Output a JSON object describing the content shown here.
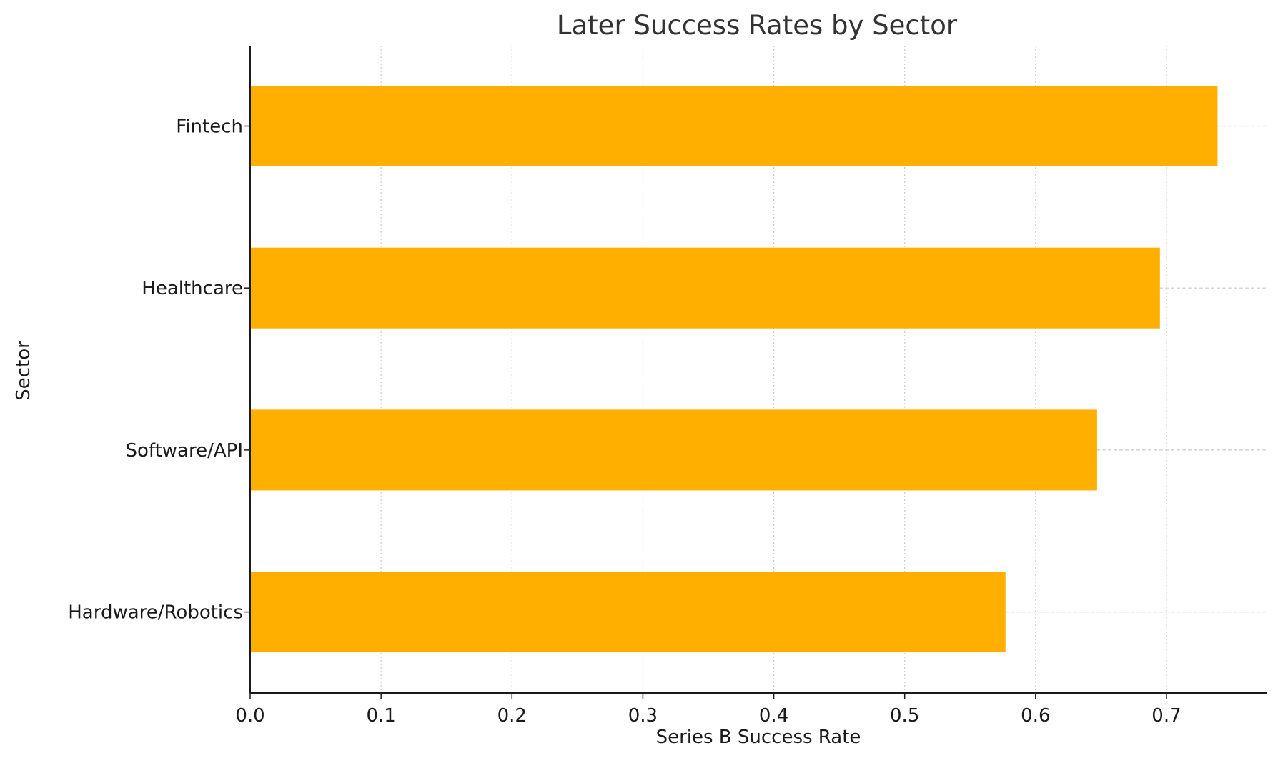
{
  "chart_data": {
    "type": "bar",
    "orientation": "horizontal",
    "title": "Later Success Rates by Sector",
    "xlabel": "Series B Success Rate",
    "ylabel": "Sector",
    "categories": [
      "Fintech",
      "Healthcare",
      "Software/API",
      "Hardware/Robotics"
    ],
    "values": [
      0.739,
      0.695,
      0.647,
      0.577
    ],
    "xlim": [
      0.0,
      0.777
    ],
    "xticks": [
      "0.0",
      "0.1",
      "0.2",
      "0.3",
      "0.4",
      "0.5",
      "0.6",
      "0.7"
    ],
    "grid": true,
    "bar_color": "#FFAF00"
  }
}
